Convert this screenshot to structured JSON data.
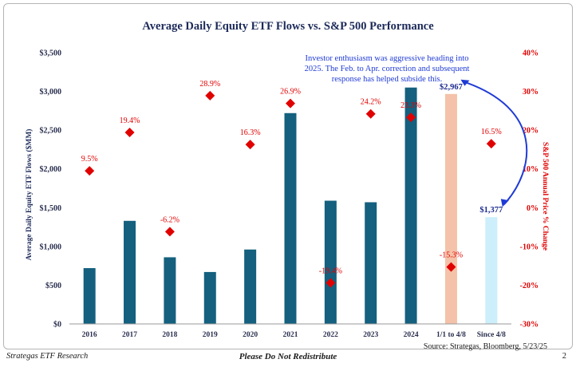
{
  "chart_data": {
    "type": "bar",
    "title": "Average Daily Equity ETF Flows vs. S&P 500 Performance",
    "ylabel": "Average Daily Equity ETF Flows ($MM)",
    "y2label": "S&P 500 Annual Price % Change",
    "categories": [
      "2016",
      "2017",
      "2018",
      "2019",
      "2020",
      "2021",
      "2022",
      "2023",
      "2024",
      "1/1 to 4/8",
      "Since 4/8"
    ],
    "ylim": [
      0,
      3500
    ],
    "y2lim": [
      -30,
      40
    ],
    "yticks": [
      "$0",
      "$500",
      "$1,000",
      "$1,500",
      "$2,000",
      "$2,500",
      "$3,000",
      "$3,500"
    ],
    "y2ticks": [
      "-30%",
      "-20%",
      "-10%",
      "0%",
      "10%",
      "20%",
      "30%",
      "40%"
    ],
    "series": [
      {
        "values": [
          720,
          1330,
          860,
          670,
          960,
          2720,
          1590,
          1570,
          3050,
          2967,
          1377
        ],
        "colors": [
          "#14607e",
          "#14607e",
          "#14607e",
          "#14607e",
          "#14607e",
          "#14607e",
          "#14607e",
          "#14607e",
          "#14607e",
          "#f4c2a8",
          "#cdeefb"
        ]
      },
      {
        "type": "scatter",
        "values": [
          9.5,
          19.4,
          -6.2,
          28.9,
          16.3,
          26.9,
          -19.4,
          24.2,
          23.3,
          -15.3,
          16.5
        ],
        "labels": [
          "9.5%",
          "19.4%",
          "-6.2%",
          "28.9%",
          "16.3%",
          "26.9%",
          "-19.4%",
          "24.2%",
          "23.3%",
          "-15.3%",
          "16.5%"
        ],
        "color": "#e00000"
      }
    ],
    "bar_value_labels": [
      {
        "index": 9,
        "text": "$2,967"
      },
      {
        "index": 10,
        "text": "$1,377"
      }
    ],
    "annotation": [
      "Investor enthusiasm was aggressive heading into",
      "2025. The Feb. to Apr. correction and subsequent",
      "response has helped subside this."
    ],
    "accent_color": "#1f3bd6",
    "title_color": "#1c2a59"
  },
  "footer": {
    "source": "Source: Strategas, Bloomberg, 5/23/25",
    "left": "Strategas ETF Research",
    "center": "Please Do Not Redistribute",
    "page": "2"
  }
}
